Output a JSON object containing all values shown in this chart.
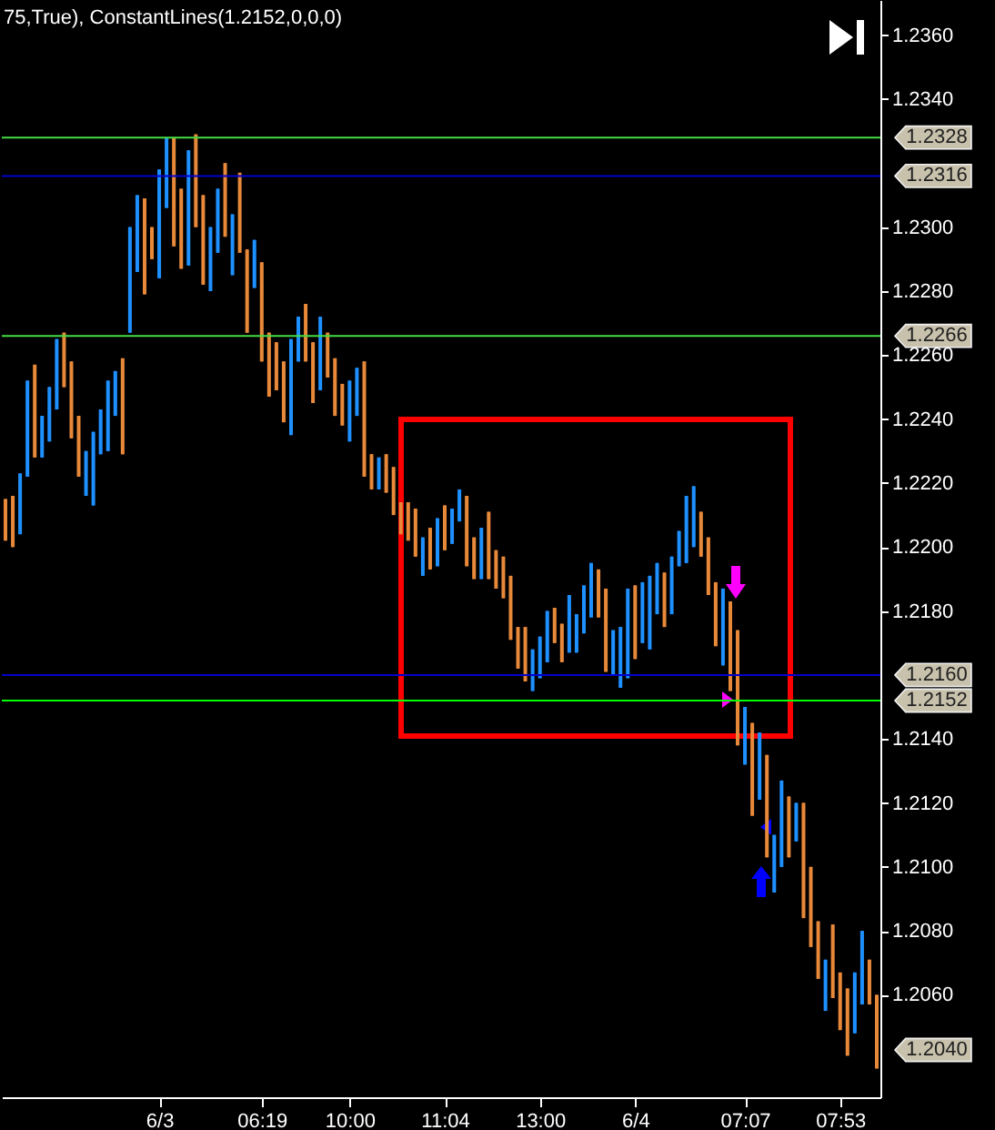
{
  "chart_data": {
    "type": "candlestick",
    "title": "75,True), ConstantLines(1.2152,0,0,0)",
    "categories": [
      null,
      null,
      null,
      null,
      null,
      null,
      null,
      null,
      null,
      null,
      null,
      null,
      null,
      null,
      null,
      null,
      null,
      null,
      null,
      null,
      null,
      "6/3",
      null,
      null,
      null,
      null,
      null,
      null,
      null,
      null,
      null,
      null,
      null,
      null,
      null,
      "06:19",
      null,
      null,
      null,
      null,
      null,
      null,
      null,
      null,
      null,
      null,
      null,
      "10:00",
      null,
      null,
      null,
      null,
      null,
      null,
      null,
      null,
      null,
      null,
      null,
      null,
      "11:04",
      null,
      null,
      null,
      null,
      null,
      null,
      null,
      null,
      null,
      null,
      null,
      null,
      "13:00",
      null,
      null,
      null,
      null,
      null,
      null,
      null,
      null,
      null,
      null,
      null,
      null,
      "6/4",
      null,
      null,
      null,
      null,
      null,
      null,
      null,
      null,
      null,
      null,
      null,
      null,
      null,
      null,
      "07:07",
      null,
      null,
      null,
      null,
      null,
      null,
      null,
      null,
      null,
      null,
      null,
      null,
      "07:53",
      null,
      null,
      null,
      null,
      null
    ],
    "ohlc": [
      [
        1.2215,
        1.2215,
        1.2202,
        1.2202
      ],
      [
        1.2216,
        1.2216,
        1.22,
        1.22
      ],
      [
        1.2204,
        1.2223,
        1.2204,
        1.2223
      ],
      [
        1.2222,
        1.2252,
        1.2222,
        1.2252
      ],
      [
        1.2257,
        1.2257,
        1.2228,
        1.2228
      ],
      [
        1.2228,
        1.2241,
        1.2228,
        1.2241
      ],
      [
        1.2233,
        1.225,
        1.2233,
        1.225
      ],
      [
        1.2243,
        1.2265,
        1.2243,
        1.2265
      ],
      [
        1.2267,
        1.2267,
        1.225,
        1.225
      ],
      [
        1.2258,
        1.2258,
        1.2234,
        1.2234
      ],
      [
        1.2241,
        1.2241,
        1.2222,
        1.2222
      ],
      [
        1.2216,
        1.223,
        1.2216,
        1.223
      ],
      [
        1.2213,
        1.2236,
        1.2213,
        1.2236
      ],
      [
        1.2229,
        1.2243,
        1.2229,
        1.2243
      ],
      [
        1.223,
        1.2252,
        1.223,
        1.2252
      ],
      [
        1.2241,
        1.2255,
        1.2241,
        1.2255
      ],
      [
        1.2259,
        1.2259,
        1.2229,
        1.2229
      ],
      [
        1.2267,
        1.23,
        1.2267,
        1.23
      ],
      [
        1.2286,
        1.231,
        1.2286,
        1.231
      ],
      [
        1.2309,
        1.2309,
        1.2279,
        1.2279
      ],
      [
        1.23,
        1.23,
        1.229,
        1.229
      ],
      [
        1.2284,
        1.2318,
        1.2284,
        1.2318
      ],
      [
        1.2306,
        1.2328,
        1.2306,
        1.2328
      ],
      [
        1.2328,
        1.2328,
        1.2294,
        1.2294
      ],
      [
        1.2312,
        1.2312,
        1.2287,
        1.2287
      ],
      [
        1.2288,
        1.2324,
        1.2288,
        1.2324
      ],
      [
        1.2329,
        1.2329,
        1.23,
        1.23
      ],
      [
        1.231,
        1.231,
        1.2282,
        1.2282
      ],
      [
        1.228,
        1.23,
        1.228,
        1.23
      ],
      [
        1.2292,
        1.2312,
        1.2292,
        1.2312
      ],
      [
        1.232,
        1.232,
        1.2297,
        1.2297
      ],
      [
        1.2285,
        1.2304,
        1.2285,
        1.2304
      ],
      [
        1.2317,
        1.2317,
        1.2292,
        1.2292
      ],
      [
        1.2293,
        1.2293,
        1.2267,
        1.2267
      ],
      [
        1.2281,
        1.2296,
        1.2281,
        1.2296
      ],
      [
        1.2289,
        1.2289,
        1.2258,
        1.2258
      ],
      [
        1.2267,
        1.2267,
        1.2247,
        1.2247
      ],
      [
        1.2264,
        1.2264,
        1.2249,
        1.2249
      ],
      [
        1.2258,
        1.2258,
        1.2239,
        1.2239
      ],
      [
        1.2235,
        1.2265,
        1.2235,
        1.2265
      ],
      [
        1.2258,
        1.2272,
        1.2258,
        1.2272
      ],
      [
        1.2276,
        1.2276,
        1.2258,
        1.2258
      ],
      [
        1.2264,
        1.2264,
        1.2245,
        1.2245
      ],
      [
        1.2249,
        1.2272,
        1.2249,
        1.2272
      ],
      [
        1.2267,
        1.2267,
        1.2253,
        1.2253
      ],
      [
        1.2259,
        1.2259,
        1.2241,
        1.2241
      ],
      [
        1.2251,
        1.2251,
        1.2238,
        1.2238
      ],
      [
        1.2233,
        1.2252,
        1.2233,
        1.2252
      ],
      [
        1.2241,
        1.2256,
        1.2241,
        1.2256
      ],
      [
        1.2258,
        1.2258,
        1.2222,
        1.2222
      ],
      [
        1.2229,
        1.2229,
        1.2218,
        1.2218
      ],
      [
        1.2218,
        1.2228,
        1.2218,
        1.2228
      ],
      [
        1.2229,
        1.2229,
        1.2217,
        1.2217
      ],
      [
        1.2225,
        1.2225,
        1.221,
        1.221
      ],
      [
        1.2214,
        1.2214,
        1.2204,
        1.2204
      ],
      [
        1.2214,
        1.2214,
        1.2202,
        1.2202
      ],
      [
        1.2212,
        1.2212,
        1.2197,
        1.2197
      ],
      [
        1.2191,
        1.2203,
        1.2191,
        1.2203
      ],
      [
        1.2206,
        1.2206,
        1.2193,
        1.2193
      ],
      [
        1.2194,
        1.2209,
        1.2194,
        1.2209
      ],
      [
        1.2213,
        1.2213,
        1.2199,
        1.2199
      ],
      [
        1.2201,
        1.2212,
        1.2201,
        1.2212
      ],
      [
        1.2208,
        1.2218,
        1.2208,
        1.2218
      ],
      [
        1.2216,
        1.2216,
        1.2194,
        1.2194
      ],
      [
        1.2203,
        1.2203,
        1.219,
        1.219
      ],
      [
        1.219,
        1.2206,
        1.219,
        1.2206
      ],
      [
        1.2211,
        1.2211,
        1.219,
        1.219
      ],
      [
        1.2199,
        1.2199,
        1.2187,
        1.2187
      ],
      [
        1.2197,
        1.2197,
        1.2184,
        1.2184
      ],
      [
        1.2191,
        1.2191,
        1.2171,
        1.2171
      ],
      [
        1.2175,
        1.2175,
        1.2162,
        1.2162
      ],
      [
        1.2175,
        1.2175,
        1.2158,
        1.2158
      ],
      [
        1.2155,
        1.2168,
        1.2155,
        1.2168
      ],
      [
        1.2159,
        1.2172,
        1.2159,
        1.2172
      ],
      [
        1.2164,
        1.218,
        1.2164,
        1.218
      ],
      [
        1.2181,
        1.2181,
        1.217,
        1.217
      ],
      [
        1.2176,
        1.2176,
        1.2164,
        1.2164
      ],
      [
        1.2167,
        1.2185,
        1.2167,
        1.2185
      ],
      [
        1.2167,
        1.2179,
        1.2167,
        1.2179
      ],
      [
        1.2173,
        1.2188,
        1.2173,
        1.2188
      ],
      [
        1.2178,
        1.2195,
        1.2178,
        1.2195
      ],
      [
        1.2193,
        1.2193,
        1.2178,
        1.2178
      ],
      [
        1.2187,
        1.2187,
        1.2161,
        1.2161
      ],
      [
        1.216,
        1.2174,
        1.216,
        1.2174
      ],
      [
        1.2156,
        1.2175,
        1.2156,
        1.2175
      ],
      [
        1.2159,
        1.2187,
        1.2159,
        1.2187
      ],
      [
        1.2188,
        1.2188,
        1.2165,
        1.2165
      ],
      [
        1.217,
        1.2189,
        1.217,
        1.2189
      ],
      [
        1.2168,
        1.2191,
        1.2168,
        1.2191
      ],
      [
        1.2179,
        1.2195,
        1.2179,
        1.2195
      ],
      [
        1.2192,
        1.2192,
        1.2175,
        1.2175
      ],
      [
        1.2179,
        1.2197,
        1.2179,
        1.2197
      ],
      [
        1.2194,
        1.2205,
        1.2194,
        1.2205
      ],
      [
        1.2195,
        1.2216,
        1.2195,
        1.2216
      ],
      [
        1.22,
        1.2219,
        1.22,
        1.2219
      ],
      [
        1.2211,
        1.2211,
        1.2197,
        1.2197
      ],
      [
        1.2203,
        1.2203,
        1.2185,
        1.2185
      ],
      [
        1.2189,
        1.2189,
        1.2169,
        1.2169
      ],
      [
        1.2163,
        1.2187,
        1.2163,
        1.2187
      ],
      [
        1.2183,
        1.2183,
        1.2155,
        1.2155
      ],
      [
        1.2174,
        1.2174,
        1.2138,
        1.2138
      ],
      [
        1.2132,
        1.215,
        1.2132,
        1.215
      ],
      [
        1.2145,
        1.2145,
        1.2116,
        1.2116
      ],
      [
        1.2121,
        1.2142,
        1.2121,
        1.2142
      ],
      [
        1.2135,
        1.2135,
        1.2103,
        1.2103
      ],
      [
        1.2092,
        1.211,
        1.2092,
        1.211
      ],
      [
        1.21,
        1.2127,
        1.21,
        1.2127
      ],
      [
        1.2122,
        1.2122,
        1.2103,
        1.2103
      ],
      [
        1.2108,
        1.212,
        1.2108,
        1.212
      ],
      [
        1.212,
        1.212,
        1.2084,
        1.2084
      ],
      [
        1.21,
        1.21,
        1.2075,
        1.2075
      ],
      [
        1.2083,
        1.2083,
        1.2065,
        1.2065
      ],
      [
        1.2055,
        1.2071,
        1.2055,
        1.2071
      ],
      [
        1.2082,
        1.2082,
        1.2059,
        1.2059
      ],
      [
        1.2067,
        1.2067,
        1.2049,
        1.2049
      ],
      [
        1.2062,
        1.2062,
        1.2041,
        1.2041
      ],
      [
        1.2048,
        1.2067,
        1.2048,
        1.2067
      ],
      [
        1.2057,
        1.208,
        1.2057,
        1.208
      ],
      [
        1.2071,
        1.2071,
        1.2057,
        1.2057
      ],
      [
        1.206,
        1.206,
        1.2037,
        1.2037
      ]
    ],
    "colors": [
      "#e8893a",
      "#e8893a",
      "#1e90ff",
      "#1e90ff",
      "#e8893a",
      "#1e90ff",
      "#1e90ff",
      "#1e90ff",
      "#e8893a",
      "#e8893a",
      "#e8893a",
      "#1e90ff",
      "#1e90ff",
      "#1e90ff",
      "#1e90ff",
      "#1e90ff",
      "#e8893a",
      "#1e90ff",
      "#1e90ff",
      "#e8893a",
      "#e8893a",
      "#1e90ff",
      "#1e90ff",
      "#e8893a",
      "#e8893a",
      "#1e90ff",
      "#e8893a",
      "#e8893a",
      "#1e90ff",
      "#1e90ff",
      "#e8893a",
      "#1e90ff",
      "#e8893a",
      "#e8893a",
      "#1e90ff",
      "#e8893a",
      "#e8893a",
      "#e8893a",
      "#e8893a",
      "#1e90ff",
      "#1e90ff",
      "#e8893a",
      "#e8893a",
      "#1e90ff",
      "#e8893a",
      "#e8893a",
      "#e8893a",
      "#1e90ff",
      "#1e90ff",
      "#e8893a",
      "#e8893a",
      "#1e90ff",
      "#e8893a",
      "#e8893a",
      "#e8893a",
      "#e8893a",
      "#e8893a",
      "#1e90ff",
      "#e8893a",
      "#1e90ff",
      "#e8893a",
      "#1e90ff",
      "#1e90ff",
      "#e8893a",
      "#e8893a",
      "#1e90ff",
      "#e8893a",
      "#e8893a",
      "#e8893a",
      "#e8893a",
      "#e8893a",
      "#e8893a",
      "#1e90ff",
      "#1e90ff",
      "#1e90ff",
      "#e8893a",
      "#e8893a",
      "#1e90ff",
      "#1e90ff",
      "#1e90ff",
      "#1e90ff",
      "#e8893a",
      "#e8893a",
      "#1e90ff",
      "#1e90ff",
      "#1e90ff",
      "#e8893a",
      "#1e90ff",
      "#1e90ff",
      "#1e90ff",
      "#e8893a",
      "#1e90ff",
      "#1e90ff",
      "#1e90ff",
      "#1e90ff",
      "#e8893a",
      "#e8893a",
      "#e8893a",
      "#1e90ff",
      "#e8893a",
      "#e8893a",
      "#1e90ff",
      "#e8893a",
      "#1e90ff",
      "#e8893a",
      "#1e90ff",
      "#1e90ff",
      "#e8893a",
      "#1e90ff",
      "#e8893a",
      "#e8893a",
      "#e8893a",
      "#1e90ff",
      "#e8893a",
      "#e8893a",
      "#e8893a",
      "#1e90ff",
      "#1e90ff",
      "#e8893a",
      "#e8893a"
    ],
    "ylim": [
      1.2028,
      1.2371
    ],
    "yticks": [
      {
        "value": 1.236,
        "label": "1.2360"
      },
      {
        "value": 1.234,
        "label": "1.2340"
      },
      {
        "value": 1.23,
        "label": "1.2300"
      },
      {
        "value": 1.228,
        "label": "1.2280"
      },
      {
        "value": 1.226,
        "label": "1.2260"
      },
      {
        "value": 1.224,
        "label": "1.2240"
      },
      {
        "value": 1.222,
        "label": "1.2220"
      },
      {
        "value": 1.22,
        "label": "1.2200"
      },
      {
        "value": 1.218,
        "label": "1.2180"
      },
      {
        "value": 1.214,
        "label": "1.2140"
      },
      {
        "value": 1.212,
        "label": "1.2120"
      },
      {
        "value": 1.21,
        "label": "1.2100"
      },
      {
        "value": 1.208,
        "label": "1.2080"
      },
      {
        "value": 1.206,
        "label": "1.2060"
      }
    ],
    "ref_lines": [
      {
        "axis": "y",
        "value": 1.2328,
        "label": "1.2328",
        "color": "#44dd44"
      },
      {
        "axis": "y",
        "value": 1.2316,
        "label": "1.2316",
        "color": "#0000cc"
      },
      {
        "axis": "y",
        "value": 1.2266,
        "label": "1.2266",
        "color": "#44dd44"
      },
      {
        "axis": "y",
        "value": 1.216,
        "label": "1.2160",
        "color": "#0000cc"
      },
      {
        "axis": "y",
        "value": 1.2152,
        "label": "1.2152",
        "color": "#00ff00"
      }
    ],
    "annotations": [
      "1.2040"
    ]
  }
}
